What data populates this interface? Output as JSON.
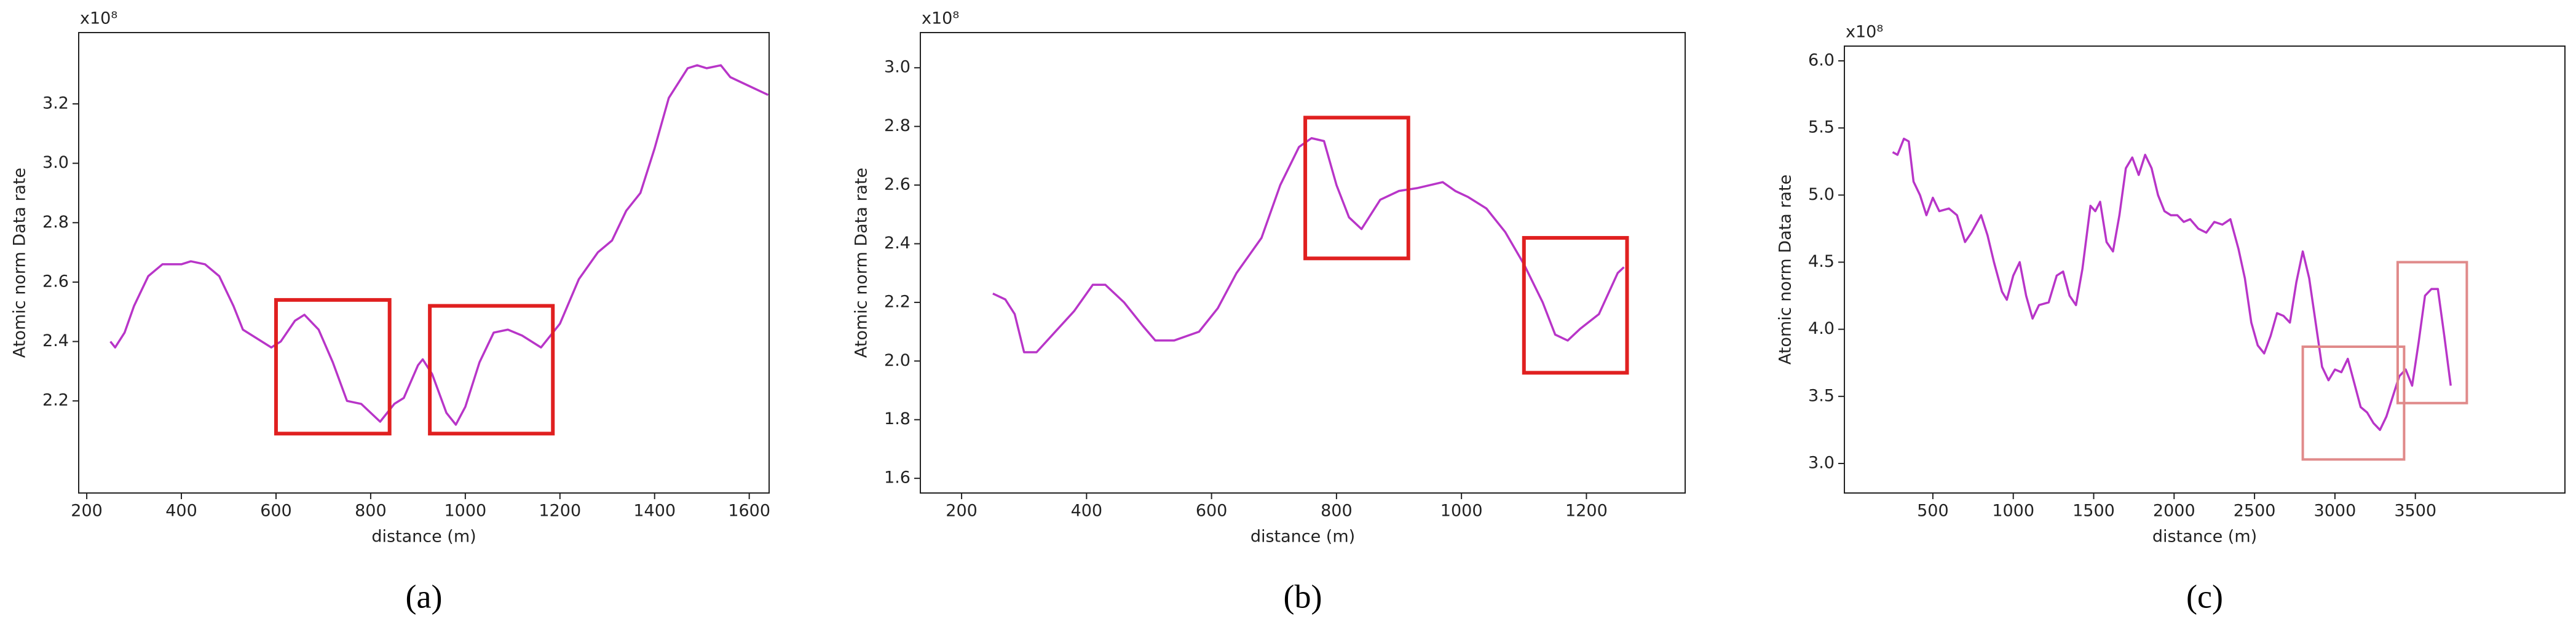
{
  "chart_data": [
    {
      "type": "line",
      "panel_label": "(a)",
      "xlabel": "distance (m)",
      "ylabel": "Atomic norm Data rate",
      "offset_text": "x10⁸",
      "color": "#b835c8",
      "x": [
        250,
        260,
        280,
        300,
        330,
        360,
        400,
        420,
        450,
        480,
        510,
        530,
        560,
        590,
        610,
        640,
        660,
        690,
        720,
        750,
        780,
        800,
        820,
        850,
        870,
        900,
        910,
        930,
        960,
        980,
        1000,
        1030,
        1060,
        1090,
        1120,
        1160,
        1200,
        1240,
        1280,
        1310,
        1340,
        1370,
        1400,
        1430,
        1470,
        1490,
        1510,
        1540,
        1560,
        1600,
        1640
      ],
      "values": [
        2.4,
        2.38,
        2.43,
        2.52,
        2.62,
        2.66,
        2.66,
        2.67,
        2.66,
        2.62,
        2.52,
        2.44,
        2.41,
        2.38,
        2.4,
        2.47,
        2.49,
        2.44,
        2.33,
        2.2,
        2.19,
        2.16,
        2.13,
        2.19,
        2.21,
        2.32,
        2.34,
        2.29,
        2.16,
        2.12,
        2.18,
        2.33,
        2.43,
        2.44,
        2.42,
        2.38,
        2.46,
        2.61,
        2.7,
        2.74,
        2.84,
        2.9,
        3.05,
        3.22,
        3.32,
        3.33,
        3.32,
        3.33,
        3.29,
        3.26,
        3.23
      ],
      "xlim": [
        183,
        1642
      ],
      "ylim": [
        1.89,
        3.44
      ],
      "xticks": [
        200,
        400,
        600,
        800,
        1000,
        1200,
        1400,
        1600
      ],
      "yticks": [
        2.2,
        2.4,
        2.6,
        2.8,
        {
          "value": 3,
          "label": "3.0"
        },
        3.2
      ],
      "highlight_boxes": [
        {
          "x": [
            600,
            840
          ],
          "y": [
            2.09,
            2.54
          ],
          "color": "#e02020"
        },
        {
          "x": [
            925,
            1185
          ],
          "y": [
            2.09,
            2.52
          ],
          "color": "#e02020"
        }
      ]
    },
    {
      "type": "line",
      "panel_label": "(b)",
      "xlabel": "distance (m)",
      "ylabel": "Atomic norm Data rate",
      "offset_text": "x10⁸",
      "color": "#b835c8",
      "x": [
        250,
        270,
        285,
        300,
        320,
        350,
        380,
        410,
        430,
        460,
        490,
        510,
        540,
        580,
        610,
        640,
        680,
        710,
        740,
        760,
        780,
        800,
        820,
        840,
        870,
        900,
        930,
        970,
        990,
        1010,
        1040,
        1070,
        1100,
        1130,
        1150,
        1170,
        1190,
        1220,
        1250,
        1260
      ],
      "values": [
        2.23,
        2.21,
        2.16,
        2.03,
        2.03,
        2.1,
        2.17,
        2.26,
        2.26,
        2.2,
        2.12,
        2.07,
        2.07,
        2.1,
        2.18,
        2.3,
        2.42,
        2.6,
        2.73,
        2.76,
        2.75,
        2.6,
        2.49,
        2.45,
        2.55,
        2.58,
        2.59,
        2.61,
        2.58,
        2.56,
        2.52,
        2.44,
        2.33,
        2.2,
        2.09,
        2.07,
        2.11,
        2.16,
        2.3,
        2.32
      ],
      "xlim": [
        134,
        1358
      ],
      "ylim": [
        1.55,
        3.12
      ],
      "xticks": [
        200,
        400,
        600,
        800,
        1000,
        1200
      ],
      "yticks": [
        1.6,
        1.8,
        {
          "value": 2,
          "label": "2.0"
        },
        2.2,
        2.4,
        2.6,
        2.8,
        {
          "value": 3,
          "label": "3.0"
        }
      ],
      "highlight_boxes": [
        {
          "x": [
            750,
            915
          ],
          "y": [
            2.35,
            2.83
          ],
          "color": "#e02020"
        },
        {
          "x": [
            1100,
            1265
          ],
          "y": [
            1.96,
            2.42
          ],
          "color": "#e02020"
        }
      ]
    },
    {
      "type": "line",
      "panel_label": "(c)",
      "xlabel": "distance (m)",
      "ylabel": "Atomic norm Data rate",
      "offset_text": "x10⁸",
      "color": "#b835c8",
      "x": [
        250,
        280,
        320,
        350,
        380,
        420,
        460,
        500,
        540,
        600,
        650,
        700,
        740,
        800,
        840,
        880,
        930,
        960,
        1000,
        1040,
        1080,
        1120,
        1160,
        1220,
        1270,
        1310,
        1350,
        1390,
        1430,
        1480,
        1510,
        1540,
        1580,
        1620,
        1660,
        1700,
        1740,
        1780,
        1820,
        1860,
        1900,
        1940,
        1980,
        2020,
        2060,
        2100,
        2150,
        2200,
        2250,
        2300,
        2350,
        2400,
        2440,
        2480,
        2520,
        2560,
        2600,
        2640,
        2680,
        2720,
        2760,
        2800,
        2840,
        2880,
        2920,
        2960,
        3000,
        3040,
        3080,
        3120,
        3160,
        3200,
        3240,
        3280,
        3320,
        3360,
        3400,
        3440,
        3480,
        3520,
        3560,
        3600,
        3640,
        3680,
        3720
      ],
      "values": [
        5.32,
        5.3,
        5.42,
        5.4,
        5.1,
        5.0,
        4.85,
        4.98,
        4.88,
        4.9,
        4.85,
        4.65,
        4.72,
        4.85,
        4.7,
        4.5,
        4.28,
        4.22,
        4.4,
        4.5,
        4.25,
        4.08,
        4.18,
        4.2,
        4.4,
        4.43,
        4.25,
        4.18,
        4.45,
        4.92,
        4.88,
        4.95,
        4.65,
        4.58,
        4.85,
        5.2,
        5.28,
        5.15,
        5.3,
        5.2,
        5.0,
        4.88,
        4.85,
        4.85,
        4.8,
        4.82,
        4.75,
        4.72,
        4.8,
        4.78,
        4.82,
        4.6,
        4.38,
        4.05,
        3.88,
        3.82,
        3.95,
        4.12,
        4.1,
        4.05,
        4.35,
        4.58,
        4.38,
        4.05,
        3.72,
        3.62,
        3.7,
        3.68,
        3.78,
        3.6,
        3.42,
        3.38,
        3.3,
        3.25,
        3.35,
        3.5,
        3.65,
        3.7,
        3.58,
        3.9,
        4.25,
        4.3,
        4.3,
        3.95,
        3.58
      ],
      "xlim": [
        -50,
        4430
      ],
      "ylim": [
        2.78,
        6.11
      ],
      "xticks": [
        500,
        1000,
        1500,
        2000,
        2500,
        3000,
        3500
      ],
      "yticks": [
        {
          "value": 3,
          "label": "3.0"
        },
        3.5,
        {
          "value": 4,
          "label": "4.0"
        },
        4.5,
        {
          "value": 5,
          "label": "5.0"
        },
        5.5,
        {
          "value": 6,
          "label": "6.0"
        }
      ],
      "highlight_boxes": [
        {
          "x": [
            2800,
            3430
          ],
          "y": [
            3.03,
            3.87
          ],
          "color": "#e08a8a"
        },
        {
          "x": [
            3390,
            3820
          ],
          "y": [
            3.45,
            4.5
          ],
          "color": "#e08a8a"
        }
      ]
    }
  ]
}
